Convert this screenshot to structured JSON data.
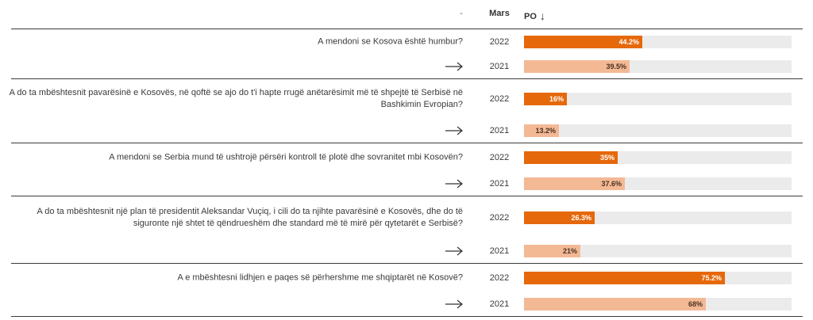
{
  "header": {
    "dash": "-",
    "mars": "Mars",
    "po": "PO",
    "sort_arrow": "↓"
  },
  "colors": {
    "y2022": "#e5680b",
    "y2021": "#f3b995",
    "track": "#ebebeb"
  },
  "chart_data": {
    "type": "bar",
    "orientation": "horizontal",
    "xlim": [
      0,
      100
    ],
    "unit": "%",
    "groups": [
      {
        "question": "A mendoni se Kosova është humbur?",
        "rows": [
          {
            "year": "2022",
            "value": 44.2,
            "label": "44.2%"
          },
          {
            "year": "2021",
            "value": 39.5,
            "label": "39.5%"
          }
        ]
      },
      {
        "question": "A do ta mbështesnit pavarësinë e Kosovës, në qoftë se ajo do t'i hapte rrugë anëtarësimit më të shpejtë të Serbisë në Bashkimin Evropian?",
        "rows": [
          {
            "year": "2022",
            "value": 16,
            "label": "16%"
          },
          {
            "year": "2021",
            "value": 13.2,
            "label": "13.2%"
          }
        ]
      },
      {
        "question": "A mendoni se Serbia mund të ushtrojë përsëri kontroll të plotë dhe sovranitet mbi Kosovën?",
        "rows": [
          {
            "year": "2022",
            "value": 35,
            "label": "35%"
          },
          {
            "year": "2021",
            "value": 37.6,
            "label": "37.6%"
          }
        ]
      },
      {
        "question": "A do ta mbështesnit një plan të presidentit Aleksandar Vuçiq, i cili do ta njihte pavarësinë e Kosovës, dhe do të siguronte një shtet të qëndrueshëm dhe standard më të mirë për qytetarët e Serbisë?",
        "rows": [
          {
            "year": "2022",
            "value": 26.3,
            "label": "26.3%"
          },
          {
            "year": "2021",
            "value": 21,
            "label": "21%"
          }
        ]
      },
      {
        "question": "A e mbështesni lidhjen e paqes së përhershme me shqiptarët në Kosovë?",
        "rows": [
          {
            "year": "2022",
            "value": 75.2,
            "label": "75.2%"
          },
          {
            "year": "2021",
            "value": 68,
            "label": "68%"
          }
        ]
      }
    ]
  }
}
